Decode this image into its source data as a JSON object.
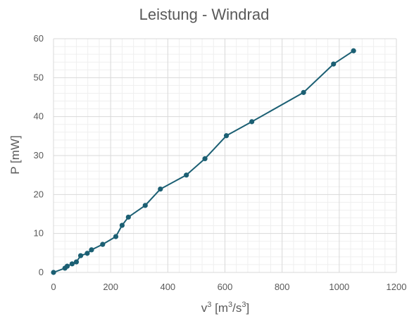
{
  "chart_data": {
    "type": "line",
    "title": "Leistung - Windrad",
    "xlabel": {
      "v": "v",
      "sup1": "3",
      "mid": " [m",
      "sup2": "3",
      "slash": "/s",
      "sup3": "3",
      "end": "]"
    },
    "ylabel": "P [mW]",
    "xlim": [
      0,
      1200
    ],
    "ylim": [
      0,
      60
    ],
    "x_ticks": [
      0,
      200,
      400,
      600,
      800,
      1000,
      1200
    ],
    "y_ticks": [
      0,
      10,
      20,
      30,
      40,
      50,
      60
    ],
    "grid": true,
    "minor_grid": true,
    "legend": "none",
    "colors": {
      "series": "#1b5f73",
      "major_grid": "#d9d9d9",
      "minor_grid": "#efefef",
      "text": "#595959"
    },
    "series": [
      {
        "x": [
          0,
          40,
          48,
          65,
          80,
          95,
          118,
          133,
          172,
          218,
          240,
          262,
          321,
          374,
          465,
          530,
          605,
          694,
          875,
          980,
          1050
        ],
        "y": [
          0,
          1.1,
          1.6,
          2.2,
          2.7,
          4.3,
          4.9,
          5.8,
          7.2,
          9.2,
          12.1,
          14.2,
          17.2,
          21.4,
          25.0,
          29.2,
          35.1,
          38.7,
          46.2,
          53.5,
          56.9
        ]
      }
    ]
  }
}
